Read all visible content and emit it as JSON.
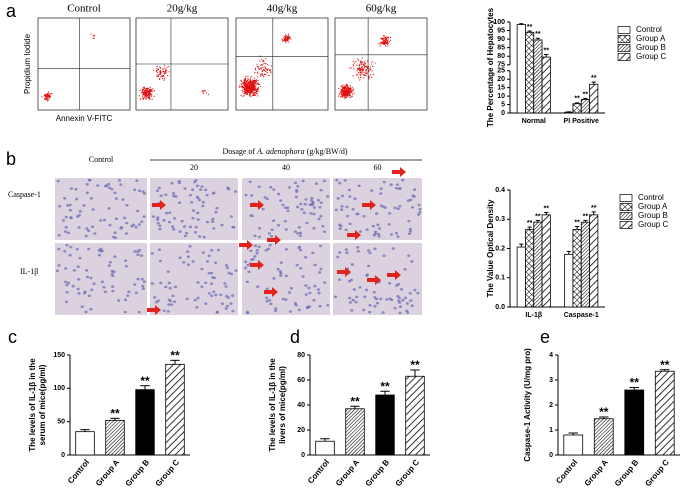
{
  "panel_labels": [
    "a",
    "b",
    "c",
    "d",
    "e"
  ],
  "flow": {
    "titles": [
      "Control",
      "20g/kg",
      "40g/kg",
      "60g/kg"
    ],
    "ylabel": "Propidium Iodide",
    "xlabel": "Annexin V-FITC"
  },
  "histology": {
    "dosage_prefix": "Dosage of ",
    "species": "A. adenophora",
    "dosage_suffix": " (g/kg/BW/d)",
    "columns": [
      "Control",
      "20",
      "40",
      "60"
    ],
    "rows": [
      "Caspase-1",
      "IL-1β"
    ]
  },
  "chart_data": [
    {
      "type": "bar",
      "ylabel": "The Percentage of Hepatocytes",
      "categories": [
        "Normal",
        "PI Positive"
      ],
      "ylim": [
        0,
        100
      ],
      "axis_break": [
        25,
        75
      ],
      "yticks": [
        0,
        5,
        10,
        15,
        20,
        25,
        75,
        80,
        85,
        90,
        95,
        100
      ],
      "series": [
        {
          "name": "Control",
          "pattern": "none",
          "values": [
            98.5,
            0.5
          ],
          "errors": [
            0.5,
            0.2
          ],
          "stars": [
            null,
            null
          ]
        },
        {
          "name": "Group A",
          "pattern": "crosshatch",
          "values": [
            94,
            5.5
          ],
          "errors": [
            0.7,
            0.5
          ],
          "stars": [
            "**",
            "**"
          ]
        },
        {
          "name": "Group B",
          "pattern": "dense",
          "values": [
            89.5,
            8
          ],
          "errors": [
            1,
            0.6
          ],
          "stars": [
            "**",
            "**"
          ]
        },
        {
          "name": "Group C",
          "pattern": "diagonal",
          "values": [
            79.5,
            17
          ],
          "errors": [
            1.5,
            1.3
          ],
          "stars": [
            "**",
            "**"
          ]
        }
      ]
    },
    {
      "type": "bar",
      "ylabel": "The Value Optical Density",
      "categories": [
        "IL-1β",
        "Caspase-1"
      ],
      "ylim": [
        0,
        0.4
      ],
      "yticks": [
        {
          "value": 0,
          "label": "0.0"
        },
        0.1,
        0.2,
        0.3,
        0.4
      ],
      "series": [
        {
          "name": "Control",
          "pattern": "none",
          "values": [
            0.205,
            0.18
          ],
          "errors": [
            0.01,
            0.01
          ],
          "stars": [
            null,
            null
          ]
        },
        {
          "name": "Group A",
          "pattern": "crosshatch",
          "values": [
            0.265,
            0.265
          ],
          "errors": [
            0.008,
            0.01
          ],
          "stars": [
            "**",
            "**"
          ]
        },
        {
          "name": "Group B",
          "pattern": "dense",
          "values": [
            0.29,
            0.29
          ],
          "errors": [
            0.006,
            0.006
          ],
          "stars": [
            "**",
            "**"
          ]
        },
        {
          "name": "Group C",
          "pattern": "diagonal",
          "values": [
            0.315,
            0.315
          ],
          "errors": [
            0.008,
            0.01
          ],
          "stars": [
            "**",
            "**"
          ]
        }
      ]
    },
    {
      "type": "bar",
      "ylabel": [
        "The levels of IL-1β in the",
        "serum of mice(pg/ml)"
      ],
      "categories": [
        "Control",
        "Group A",
        "Group B",
        "Group C"
      ],
      "patterns": [
        "none",
        "dense",
        "solid",
        "diagonal"
      ],
      "values": [
        35,
        52,
        98,
        136
      ],
      "errors": [
        3,
        3,
        6,
        6
      ],
      "stars": [
        null,
        "**",
        "**",
        "**"
      ],
      "ylim": [
        0,
        150
      ],
      "yticks": [
        0,
        50,
        100,
        150
      ]
    },
    {
      "type": "bar",
      "ylabel": [
        "The levels of IL-1β in the",
        "livers of mice(pg/ml)"
      ],
      "categories": [
        "Control",
        "Group A",
        "Group B",
        "Group C"
      ],
      "patterns": [
        "none",
        "dense",
        "solid",
        "diagonal"
      ],
      "values": [
        11,
        37,
        48,
        63
      ],
      "errors": [
        2,
        2,
        3,
        5
      ],
      "stars": [
        null,
        "**",
        "**",
        "**"
      ],
      "ylim": [
        0,
        80
      ],
      "yticks": [
        0,
        20,
        40,
        60,
        80
      ]
    },
    {
      "type": "bar",
      "ylabel": [
        "Caspase-1 Activity (U/mg pro)"
      ],
      "categories": [
        "Control",
        "Group A",
        "Group B",
        "Group C"
      ],
      "patterns": [
        "none",
        "dense",
        "solid",
        "diagonal"
      ],
      "values": [
        0.8,
        1.45,
        2.6,
        3.35
      ],
      "errors": [
        0.08,
        0.07,
        0.1,
        0.06
      ],
      "stars": [
        null,
        "**",
        "**",
        "**"
      ],
      "ylim": [
        0,
        4
      ],
      "yticks": [
        0,
        1,
        2,
        3,
        4
      ]
    }
  ]
}
